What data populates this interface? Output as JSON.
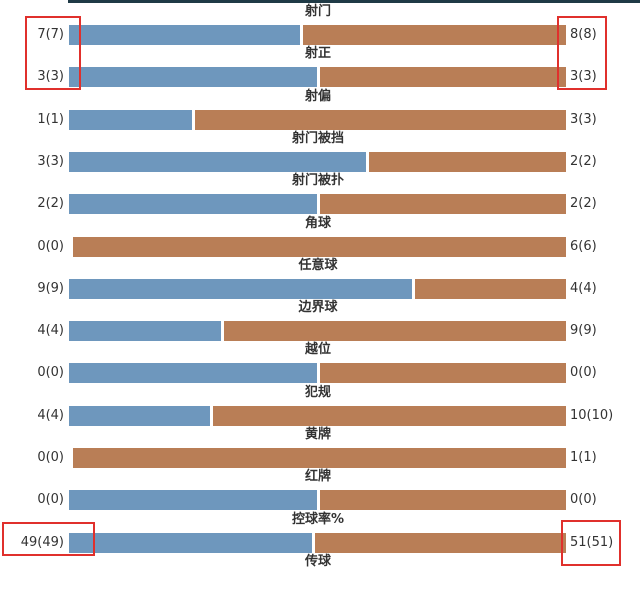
{
  "colors": {
    "home_bar": "#6e97bd",
    "away_bar": "#b97e56",
    "highlight": "#e0302c"
  },
  "stats": [
    {
      "label": "射门",
      "home": "7(7)",
      "away": "8(8)",
      "home_share": 0.467
    },
    {
      "label": "射正",
      "home": "3(3)",
      "away": "3(3)",
      "home_share": 0.5
    },
    {
      "label": "射偏",
      "home": "1(1)",
      "away": "3(3)",
      "home_share": 0.25
    },
    {
      "label": "射门被挡",
      "home": "3(3)",
      "away": "2(2)",
      "home_share": 0.6
    },
    {
      "label": "射门被扑",
      "home": "2(2)",
      "away": "2(2)",
      "home_share": 0.5
    },
    {
      "label": "角球",
      "home": "0(0)",
      "away": "6(6)",
      "home_share": 0.0
    },
    {
      "label": "任意球",
      "home": "9(9)",
      "away": "4(4)",
      "home_share": 0.692
    },
    {
      "label": "边界球",
      "home": "4(4)",
      "away": "9(9)",
      "home_share": 0.308
    },
    {
      "label": "越位",
      "home": "0(0)",
      "away": "0(0)",
      "home_share": 0.5
    },
    {
      "label": "犯规",
      "home": "4(4)",
      "away": "10(10)",
      "home_share": 0.286
    },
    {
      "label": "黄牌",
      "home": "0(0)",
      "away": "1(1)",
      "home_share": 0.0
    },
    {
      "label": "红牌",
      "home": "0(0)",
      "away": "0(0)",
      "home_share": 0.5
    },
    {
      "label": "控球率%",
      "home": "49(49)",
      "away": "51(51)",
      "home_share": 0.49
    },
    {
      "label": "传球"
    }
  ]
}
